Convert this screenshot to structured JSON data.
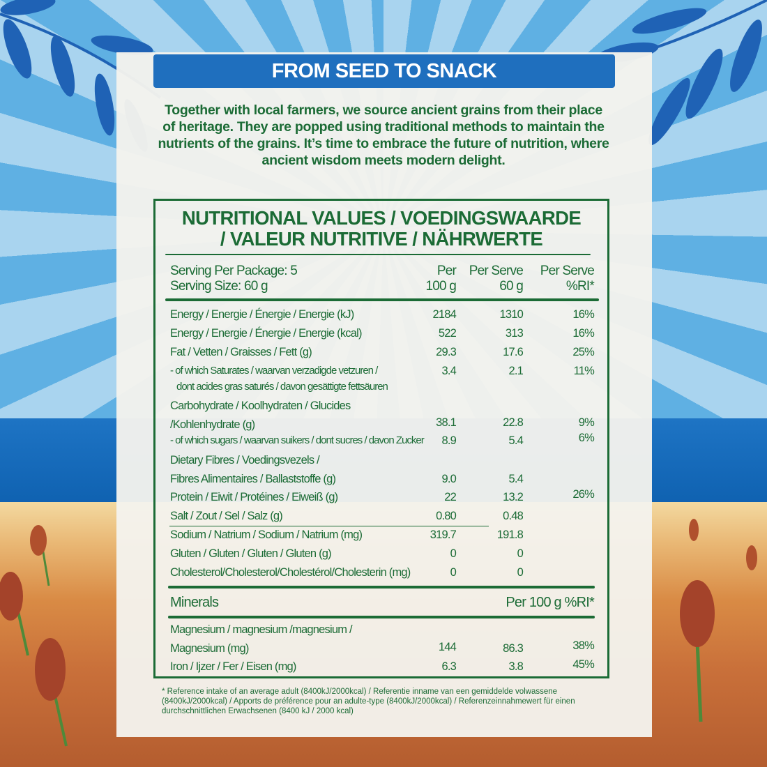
{
  "banner": {
    "title": "FROM SEED TO SNACK"
  },
  "intro": "Together with local farmers, we source ancient grains from their place of heritage. They are popped using traditional methods to maintain the nutrients of the grains. It’s time to embrace the future of nutrition, where ancient wisdom meets modern delight.",
  "table": {
    "title_line1": "NUTRITIONAL VALUES / VOEDINGSWAARDE",
    "title_line2": "/ VALEUR NUTRITIVE / NÄHRWERTE",
    "serving_per_package": "Serving Per Package: 5",
    "serving_size": "Serving Size: 60 g",
    "col1": [
      "Per",
      "100 g"
    ],
    "col2": [
      "Per Serve",
      "60 g"
    ],
    "col3": [
      "Per Serve",
      "%RI*"
    ],
    "rows": [
      {
        "label": "Energy / Energie / Énergie / Energie (kJ)",
        "per100": "2184",
        "perServe": "1310",
        "ri": "16%"
      },
      {
        "label": "Energy / Energie / Énergie / Energie (kcal)",
        "per100": "522",
        "perServe": "313",
        "ri": "16%"
      },
      {
        "label": "Fat / Vetten / Graisses / Fett (g)",
        "per100": "29.3",
        "perServe": "17.6",
        "ri": "25%"
      },
      {
        "label": "- of which Saturates / waarvan verzadigde vetzuren /",
        "label2": "dont acides gras saturés / davon gesättigte fettsäuren",
        "per100": "3.4",
        "perServe": "2.1",
        "ri": "11%"
      },
      {
        "label": "Carbohydrate / Koolhydraten / Glucides",
        "label2": "/Kohlenhydrate (g)",
        "per100": "38.1",
        "perServe": "22.8",
        "ri": "9%"
      },
      {
        "label": "- of which sugars / waarvan suikers / dont sucres / davon Zucker",
        "per100": "8.9",
        "perServe": "5.4",
        "ri": "6%"
      },
      {
        "label": "Dietary Fibres / Voedingsvezels /",
        "label2": "Fibres Alimentaires / Ballaststoffe (g)",
        "per100": "9.0",
        "perServe": "5.4",
        "ri": ""
      },
      {
        "label": "Protein / Eiwit / Protéines / Eiweiß (g)",
        "per100": "22",
        "perServe": "13.2",
        "ri": "26%"
      },
      {
        "label": "Salt / Zout / Sel / Salz (g)",
        "per100": "0.80",
        "perServe": "0.48",
        "ri": ""
      },
      {
        "label": "Sodium / Natrium / Sodium / Natrium (mg)",
        "per100": "319.7",
        "perServe": "191.8",
        "ri": ""
      },
      {
        "label": "Gluten / Gluten / Gluten / Gluten (g)",
        "per100": "0",
        "perServe": "0",
        "ri": ""
      },
      {
        "label": "Cholesterol/Cholesterol/Cholestérol/Cholesterin (mg)",
        "per100": "0",
        "perServe": "0",
        "ri": ""
      }
    ],
    "minerals_label": "Minerals",
    "minerals_header": "Per 100 g %RI*",
    "minerals": [
      {
        "label": "Magnesium / magnesium /magnesium /",
        "label2": "Magnesium (mg)",
        "per100": "144",
        "perServe": "86.3",
        "ri": "38%"
      },
      {
        "label": "Iron / Ijzer / Fer / Eisen (mg)",
        "per100": "6.3",
        "perServe": "3.8",
        "ri": "45%"
      }
    ]
  },
  "footnote": "* Reference intake of an  average adult (8400kJ/2000kcal) / Referentie inname van een gemiddelde volwassene (8400kJ/2000kcal) / Apports de préférence pour an adulte-type (8400kJ/2000kcal) / Referenzeinnahmewert für einen durchschnittlichen Erwachsenen (8400 kJ / 2000 kcal)",
  "colors": {
    "green": "#1b6b35",
    "banner_blue": "#1f6fbe",
    "sky": "#5fb0e3",
    "sea": "#0d5fae"
  }
}
